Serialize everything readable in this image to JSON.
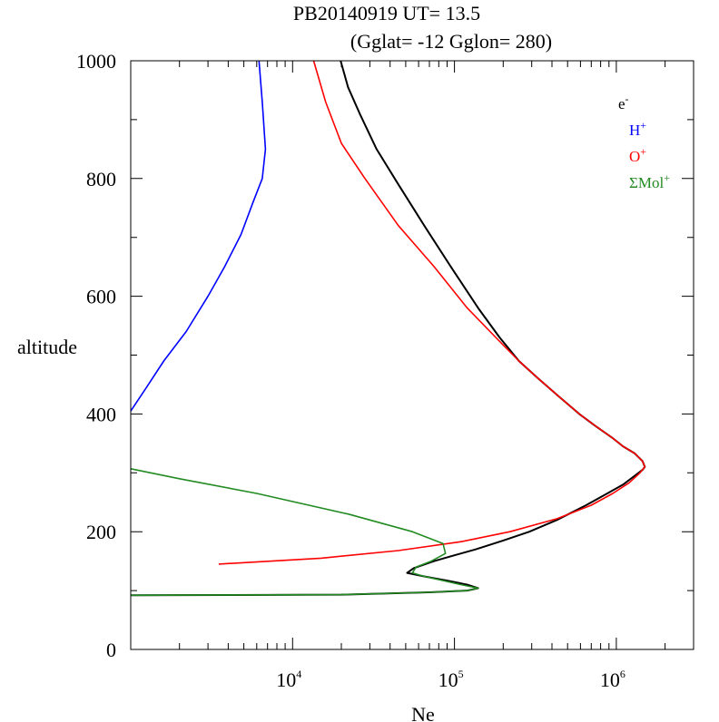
{
  "chart_data": {
    "type": "line",
    "title_line1": "PB20140919   UT=  13.5",
    "title_line2": "(Gglat= -12   Gglon=  280)",
    "xlabel": "Ne",
    "ylabel": "altitude",
    "x_scale": "log",
    "xlim": [
      1000,
      3000000
    ],
    "ylim": [
      0,
      1000
    ],
    "grid": false,
    "legend_position": "top-right",
    "x_ticks": [
      {
        "value": 10000,
        "base": "10",
        "exp": "4"
      },
      {
        "value": 100000,
        "base": "10",
        "exp": "5"
      },
      {
        "value": 1000000,
        "base": "10",
        "exp": "6"
      }
    ],
    "y_ticks": [
      {
        "value": 0,
        "label": "0"
      },
      {
        "value": 200,
        "label": "200"
      },
      {
        "value": 400,
        "label": "400"
      },
      {
        "value": 600,
        "label": "600"
      },
      {
        "value": 800,
        "label": "800"
      },
      {
        "value": 1000,
        "label": "1000"
      }
    ],
    "series": [
      {
        "name": "e",
        "sup": "-",
        "color": "#000000",
        "points": [
          [
            1000,
            92
          ],
          [
            20000,
            93
          ],
          [
            70000,
            97
          ],
          [
            120000,
            100
          ],
          [
            140000,
            104
          ],
          [
            120000,
            110
          ],
          [
            90000,
            117
          ],
          [
            65000,
            124
          ],
          [
            51000,
            130
          ],
          [
            56000,
            138
          ],
          [
            75000,
            150
          ],
          [
            100000,
            160
          ],
          [
            135000,
            170
          ],
          [
            200000,
            185
          ],
          [
            290000,
            200
          ],
          [
            430000,
            220
          ],
          [
            650000,
            245
          ],
          [
            880000,
            265
          ],
          [
            1100000,
            280
          ],
          [
            1300000,
            295
          ],
          [
            1450000,
            305
          ],
          [
            1500000,
            310
          ],
          [
            1450000,
            320
          ],
          [
            1300000,
            333
          ],
          [
            1100000,
            345
          ],
          [
            940000,
            360
          ],
          [
            740000,
            380
          ],
          [
            590000,
            400
          ],
          [
            440000,
            430
          ],
          [
            330000,
            460
          ],
          [
            250000,
            490
          ],
          [
            190000,
            530
          ],
          [
            140000,
            580
          ],
          [
            95000,
            650
          ],
          [
            65000,
            720
          ],
          [
            45000,
            790
          ],
          [
            33000,
            850
          ],
          [
            26000,
            910
          ],
          [
            22000,
            955
          ],
          [
            19800,
            1000
          ]
        ]
      },
      {
        "name": "H",
        "sup": "+",
        "color": "#0000ff",
        "points": [
          [
            1000,
            405
          ],
          [
            1250,
            445
          ],
          [
            1600,
            490
          ],
          [
            2200,
            540
          ],
          [
            3000,
            600
          ],
          [
            3800,
            650
          ],
          [
            4800,
            705
          ],
          [
            5700,
            760
          ],
          [
            6500,
            800
          ],
          [
            6800,
            850
          ],
          [
            6500,
            930
          ],
          [
            6200,
            1000
          ]
        ]
      },
      {
        "name": "O",
        "sup": "+",
        "color": "#ff0000",
        "points": [
          [
            3500,
            145
          ],
          [
            15000,
            155
          ],
          [
            45000,
            168
          ],
          [
            110000,
            183
          ],
          [
            220000,
            200
          ],
          [
            430000,
            222
          ],
          [
            700000,
            245
          ],
          [
            950000,
            265
          ],
          [
            1200000,
            283
          ],
          [
            1400000,
            300
          ],
          [
            1500000,
            310
          ],
          [
            1450000,
            320
          ],
          [
            1300000,
            333
          ],
          [
            1100000,
            345
          ],
          [
            940000,
            360
          ],
          [
            740000,
            380
          ],
          [
            590000,
            400
          ],
          [
            440000,
            430
          ],
          [
            330000,
            460
          ],
          [
            250000,
            490
          ],
          [
            180000,
            530
          ],
          [
            120000,
            580
          ],
          [
            75000,
            650
          ],
          [
            45000,
            720
          ],
          [
            28000,
            800
          ],
          [
            20000,
            860
          ],
          [
            16000,
            930
          ],
          [
            13500,
            1000
          ]
        ]
      },
      {
        "name": "ΣMol",
        "sup": "+",
        "color": "#228b22",
        "points": [
          [
            1000,
            92
          ],
          [
            20000,
            93
          ],
          [
            70000,
            97
          ],
          [
            120000,
            100
          ],
          [
            140000,
            104
          ],
          [
            110000,
            110
          ],
          [
            85000,
            117
          ],
          [
            65000,
            124
          ],
          [
            55000,
            130
          ],
          [
            58000,
            140
          ],
          [
            72000,
            150
          ],
          [
            88000,
            163
          ],
          [
            85000,
            180
          ],
          [
            55000,
            200
          ],
          [
            22000,
            230
          ],
          [
            6000,
            265
          ],
          [
            2000,
            290
          ],
          [
            1000,
            307
          ]
        ]
      }
    ]
  }
}
